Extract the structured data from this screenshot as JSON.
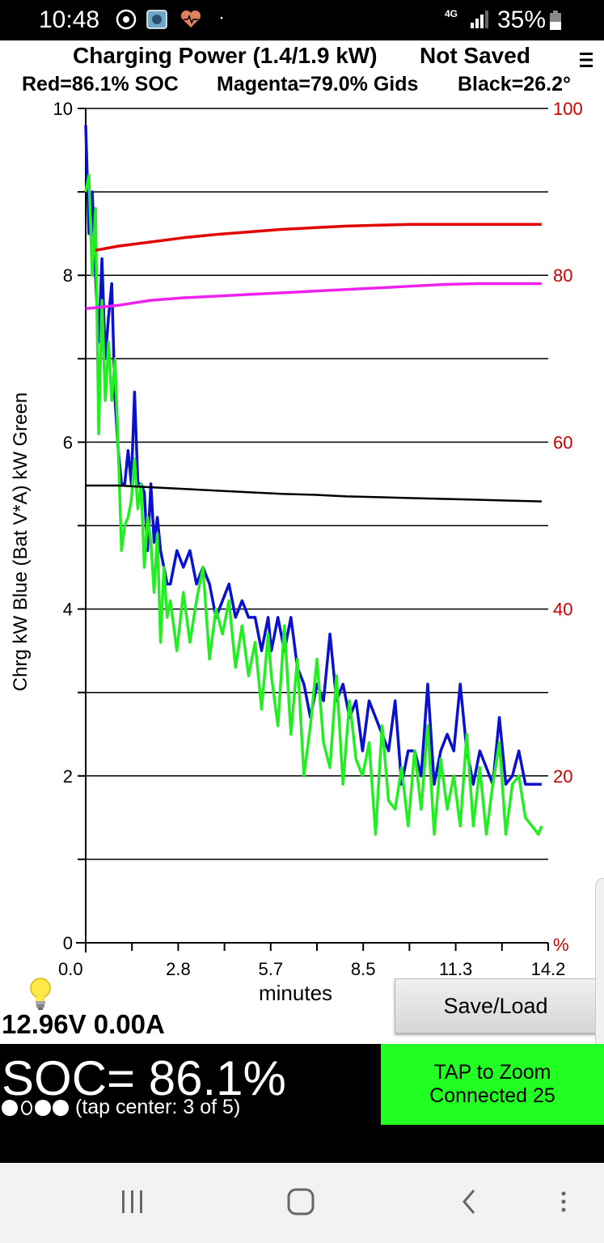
{
  "status_bar": {
    "time": "10:48",
    "network_type": "4G",
    "battery_percent": "35%"
  },
  "header": {
    "title": "Charging Power (1.4/1.9 kW)",
    "save_status": "Not Saved",
    "legend": {
      "red": "Red=86.1% SOC",
      "magenta": "Magenta=79.0% Gids",
      "black": "Black=26.2°"
    }
  },
  "chart_data": {
    "type": "line",
    "xlabel": "minutes",
    "ylabel_left": "Chrg kW Blue  (Bat V*A) kW Green",
    "ylabel_right": "%",
    "x_ticks": [
      "0.0",
      "2.8",
      "5.7",
      "8.5",
      "11.3",
      "14.2"
    ],
    "y_left_ticks": [
      "0",
      "2",
      "4",
      "6",
      "8",
      "10"
    ],
    "y_right_ticks": [
      "20",
      "40",
      "60",
      "80",
      "100"
    ],
    "xlim": [
      0,
      14.2
    ],
    "ylim_left": [
      0,
      10
    ],
    "ylim_right": [
      0,
      100
    ],
    "grid": true,
    "colors": {
      "blue": "#0a12d0",
      "green": "#22ee22",
      "red": "#e00000",
      "magenta": "#ee22ee",
      "black": "#000000",
      "right_axis_text": "#cc0000"
    },
    "series": [
      {
        "color_name": "blue",
        "axis": "left",
        "x": [
          0,
          0.1,
          0.2,
          0.3,
          0.4,
          0.5,
          0.6,
          0.7,
          0.8,
          0.9,
          1.0,
          1.1,
          1.2,
          1.3,
          1.4,
          1.5,
          1.6,
          1.7,
          1.8,
          1.9,
          2.0,
          2.1,
          2.2,
          2.3,
          2.4,
          2.5,
          2.6,
          2.8,
          3.0,
          3.2,
          3.4,
          3.6,
          3.8,
          4.0,
          4.2,
          4.4,
          4.6,
          4.8,
          5.0,
          5.2,
          5.4,
          5.6,
          5.7,
          5.9,
          6.1,
          6.3,
          6.5,
          6.7,
          6.9,
          7.1,
          7.3,
          7.5,
          7.7,
          7.9,
          8.1,
          8.3,
          8.5,
          8.7,
          8.9,
          9.1,
          9.3,
          9.5,
          9.7,
          9.9,
          10.1,
          10.3,
          10.5,
          10.7,
          10.9,
          11.1,
          11.3,
          11.5,
          11.7,
          11.9,
          12.1,
          12.3,
          12.5,
          12.7,
          12.9,
          13.1,
          13.3,
          13.5,
          13.7,
          13.9,
          14.0
        ],
        "y": [
          9.8,
          8.5,
          9.0,
          8.0,
          7.2,
          8.2,
          7.0,
          7.5,
          7.9,
          6.5,
          5.9,
          5.5,
          5.5,
          5.9,
          5.5,
          6.6,
          5.5,
          5.5,
          5.4,
          4.7,
          5.5,
          4.8,
          5.1,
          4.7,
          4.5,
          4.3,
          4.3,
          4.7,
          4.5,
          4.7,
          4.3,
          4.5,
          4.3,
          3.9,
          4.1,
          4.3,
          3.9,
          4.1,
          3.9,
          3.9,
          3.5,
          3.9,
          3.5,
          3.9,
          3.5,
          3.9,
          3.3,
          3.1,
          2.7,
          3.1,
          2.9,
          3.7,
          2.9,
          3.1,
          2.7,
          2.9,
          2.3,
          2.9,
          2.7,
          2.5,
          2.3,
          2.9,
          1.9,
          2.3,
          2.3,
          2.0,
          3.1,
          1.9,
          2.3,
          2.5,
          2.3,
          3.1,
          2.3,
          1.9,
          2.3,
          2.1,
          1.9,
          2.7,
          1.9,
          2.0,
          2.3,
          1.9,
          1.9,
          1.9,
          1.9
        ]
      },
      {
        "color_name": "green",
        "axis": "left",
        "x": [
          0,
          0.1,
          0.2,
          0.3,
          0.4,
          0.5,
          0.6,
          0.7,
          0.8,
          0.9,
          1.0,
          1.1,
          1.2,
          1.3,
          1.4,
          1.5,
          1.6,
          1.7,
          1.8,
          1.9,
          2.0,
          2.1,
          2.2,
          2.3,
          2.4,
          2.5,
          2.6,
          2.8,
          3.0,
          3.2,
          3.4,
          3.6,
          3.8,
          4.0,
          4.2,
          4.4,
          4.6,
          4.8,
          5.0,
          5.2,
          5.4,
          5.6,
          5.7,
          5.9,
          6.1,
          6.3,
          6.5,
          6.7,
          6.9,
          7.1,
          7.3,
          7.5,
          7.7,
          7.9,
          8.1,
          8.3,
          8.5,
          8.7,
          8.9,
          9.1,
          9.3,
          9.5,
          9.7,
          9.9,
          10.1,
          10.3,
          10.5,
          10.7,
          10.9,
          11.1,
          11.3,
          11.5,
          11.7,
          11.9,
          12.1,
          12.3,
          12.5,
          12.7,
          12.9,
          13.1,
          13.3,
          13.5,
          13.7,
          13.9,
          14.0
        ],
        "y": [
          9.0,
          9.2,
          8.0,
          8.8,
          6.1,
          7.7,
          6.5,
          7.2,
          6.5,
          7.0,
          5.9,
          4.7,
          5.0,
          5.1,
          5.3,
          5.8,
          5.2,
          5.5,
          4.5,
          5.1,
          4.8,
          4.2,
          4.9,
          3.6,
          4.5,
          3.9,
          4.1,
          3.5,
          4.2,
          3.6,
          4.1,
          4.5,
          3.4,
          4.0,
          3.7,
          4.1,
          3.3,
          3.8,
          3.2,
          3.6,
          2.8,
          3.7,
          3.2,
          2.6,
          3.8,
          2.5,
          3.4,
          2.0,
          2.6,
          3.4,
          2.4,
          2.1,
          3.2,
          1.9,
          2.9,
          2.2,
          2.0,
          2.4,
          1.3,
          2.6,
          1.7,
          1.6,
          2.1,
          1.4,
          2.3,
          1.6,
          2.6,
          1.3,
          2.2,
          1.6,
          2.0,
          1.4,
          2.5,
          1.4,
          2.1,
          1.3,
          1.9,
          2.4,
          1.3,
          1.9,
          2.0,
          1.5,
          1.4,
          1.3,
          1.4
        ]
      },
      {
        "color_name": "red",
        "axis": "right",
        "x": [
          0.3,
          1.0,
          2.0,
          3.0,
          4.0,
          5.0,
          6.0,
          7.0,
          8.0,
          9.0,
          10.0,
          11.0,
          12.0,
          13.0,
          14.0
        ],
        "y": [
          83.0,
          83.5,
          84.0,
          84.5,
          84.9,
          85.2,
          85.5,
          85.7,
          85.9,
          86.0,
          86.1,
          86.1,
          86.1,
          86.1,
          86.1
        ]
      },
      {
        "color_name": "magenta",
        "axis": "right",
        "x": [
          0.0,
          0.5,
          1.0,
          1.5,
          2.0,
          3.0,
          4.0,
          5.0,
          6.0,
          7.0,
          8.0,
          9.0,
          10.0,
          11.0,
          12.0,
          13.0,
          14.0
        ],
        "y": [
          76.0,
          76.2,
          76.4,
          76.7,
          77.0,
          77.3,
          77.5,
          77.7,
          77.9,
          78.1,
          78.3,
          78.5,
          78.7,
          78.9,
          79.0,
          79.0,
          79.0
        ]
      },
      {
        "color_name": "black",
        "axis": "left",
        "x": [
          0.0,
          1.0,
          2.0,
          3.0,
          4.0,
          5.0,
          6.0,
          7.0,
          8.0,
          9.0,
          10.0,
          11.0,
          12.0,
          13.0,
          14.0
        ],
        "y": [
          5.48,
          5.48,
          5.46,
          5.44,
          5.42,
          5.4,
          5.38,
          5.37,
          5.35,
          5.34,
          5.33,
          5.32,
          5.31,
          5.3,
          5.29
        ]
      }
    ]
  },
  "readout": {
    "voltage_current": "12.96V 0.00A"
  },
  "buttons": {
    "save_load": "Save/Load",
    "zoom_line1": "TAP to Zoom",
    "zoom_line2": "Connected 25"
  },
  "soc_panel": {
    "soc_text": "SOC= 86.1%",
    "dots_label": "(tap center: 3 of 5)"
  }
}
